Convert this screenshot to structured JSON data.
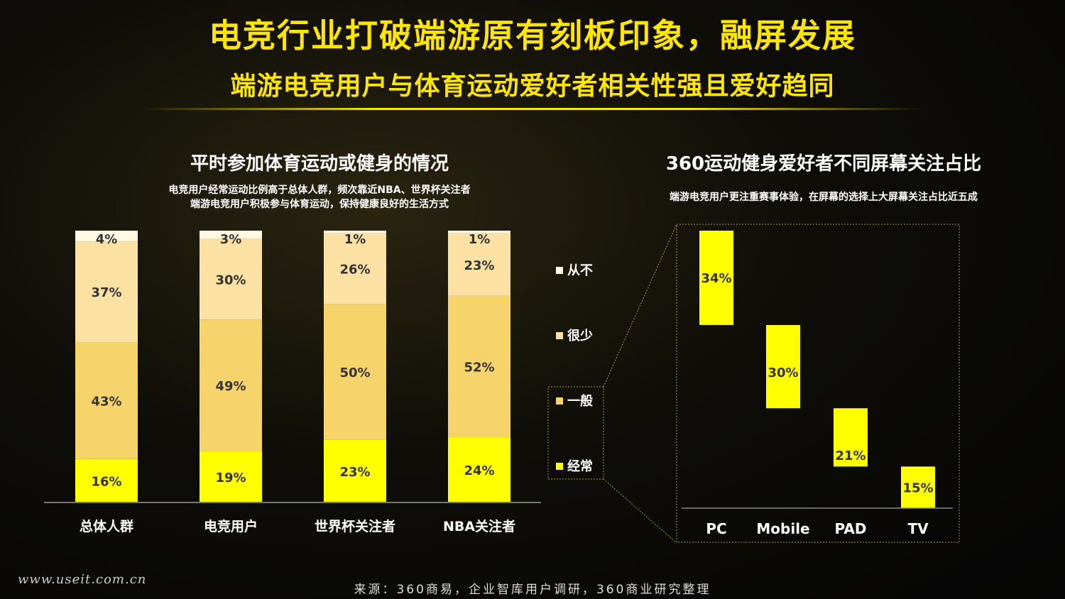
{
  "header": {
    "title": "电竞行业打破端游原有刻板印象，融屏发展",
    "subtitle": "端游电竞用户与体育运动爱好者相关性强且爱好趋同"
  },
  "left_panel": {
    "title": "平时参加体育运动或健身的情况",
    "note_line1": "电竞用户经常运动比例高于总体人群，频次靠近NBA、世界杯关注者",
    "note_line2": "端游电竞用户积极参与体育运动，保持健康良好的生活方式"
  },
  "right_panel": {
    "title": "360运动健身爱好者不同屏幕关注占比",
    "note": "端游电竞用户更注重赛事体验，在屏幕的选择上大屏幕关注占比近五成"
  },
  "footer": {
    "source": "来源：360商易，企业智库用户调研，360商业研究整理",
    "watermark": "www.useit.com.cn"
  },
  "colors": {
    "series_经常": "#ffff00",
    "series_一般": "#f7d36b",
    "series_很少": "#fbe2a4",
    "series_从不": "#fff8e2",
    "screen_bar": "#ffff00",
    "accent": "#ffe600"
  },
  "chart_data": [
    {
      "type": "bar",
      "stacked": true,
      "orientation": "vertical",
      "title": "平时参加体育运动或健身的情况",
      "categories": [
        "总体人群",
        "电竞用户",
        "世界杯关注者",
        "NBA关注者"
      ],
      "series": [
        {
          "name": "经常",
          "values": [
            16,
            19,
            23,
            24
          ],
          "labels": [
            "16%",
            "19%",
            "23%",
            "24%"
          ]
        },
        {
          "name": "一般",
          "values": [
            43,
            49,
            50,
            52
          ],
          "labels": [
            "43%",
            "49%",
            "50%",
            "52%"
          ]
        },
        {
          "name": "很少",
          "values": [
            37,
            30,
            26,
            23
          ],
          "labels": [
            "37%",
            "30%",
            "26%",
            "23%"
          ]
        },
        {
          "name": "从不",
          "values": [
            4,
            3,
            1,
            1
          ],
          "labels": [
            "4%",
            "3%",
            "1%",
            "1%"
          ]
        }
      ],
      "legend": {
        "position": "right",
        "items": [
          "从不",
          "很少",
          "一般",
          "经常"
        ]
      },
      "ylim": [
        0,
        100
      ],
      "grid": false
    },
    {
      "type": "bar",
      "subtype": "waterfall",
      "title": "360运动健身爱好者不同屏幕关注占比",
      "categories": [
        "PC",
        "Mobile",
        "PAD",
        "TV"
      ],
      "values": [
        34,
        30,
        21,
        15
      ],
      "labels": [
        "34%",
        "30%",
        "21%",
        "15%"
      ],
      "ylim": [
        0,
        100
      ],
      "grid": false
    }
  ]
}
